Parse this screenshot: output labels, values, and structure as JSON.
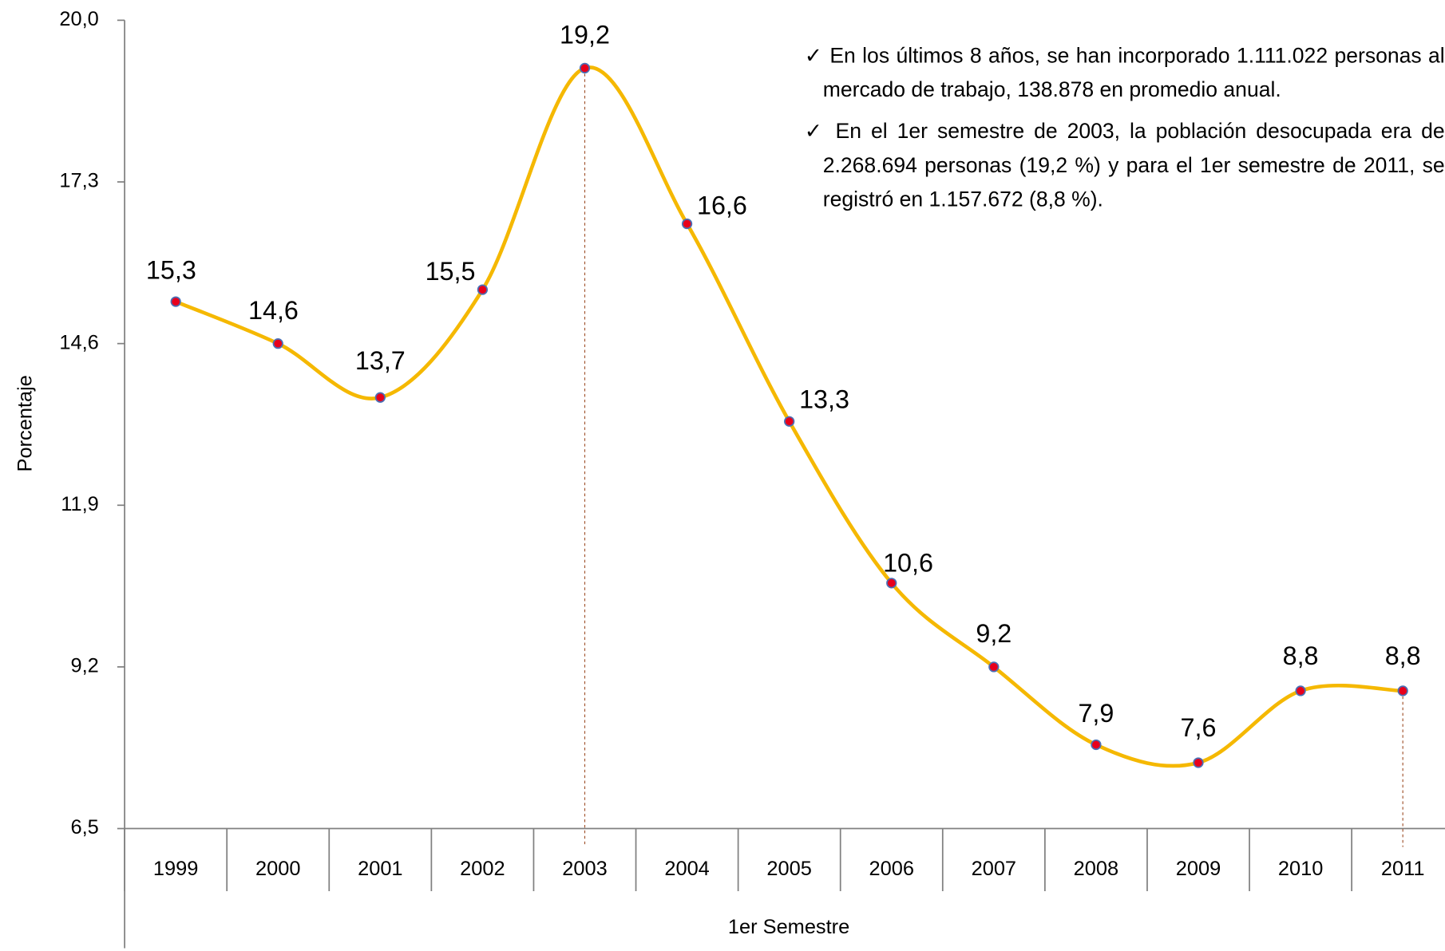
{
  "chart_data": {
    "type": "line",
    "x_label": "1er Semestre",
    "y_label": "Porcentaje",
    "categories": [
      "1999",
      "2000",
      "2001",
      "2002",
      "2003",
      "2004",
      "2005",
      "2006",
      "2007",
      "2008",
      "2009",
      "2010",
      "2011"
    ],
    "series": [
      {
        "color": "#f5b800",
        "values": [
          15.3,
          14.6,
          13.7,
          15.5,
          19.2,
          16.6,
          13.3,
          10.6,
          9.2,
          7.9,
          7.6,
          8.8,
          8.8
        ],
        "value_labels": [
          "15,3",
          "14,6",
          "13,7",
          "15,5",
          "19,2",
          "16,6",
          "13,3",
          "10,6",
          "9,2",
          "7,9",
          "7,6",
          "8,8",
          "8,8"
        ]
      }
    ],
    "ylim": [
      6.5,
      20.0
    ],
    "yticks": [
      {
        "value": 6.5,
        "label": "6,5"
      },
      {
        "value": 9.2,
        "label": "9,2"
      },
      {
        "value": 11.9,
        "label": "11,9"
      },
      {
        "value": 14.6,
        "label": "14,6"
      },
      {
        "value": 17.3,
        "label": "17,3"
      },
      {
        "value": 20.0,
        "label": "20,0"
      }
    ],
    "annotations": [
      "En los últimos 8 años, se han incorporado 1.111.022 personas al mercado de trabajo, 138.878  en promedio anual.",
      "En el  1er semestre de 2003, la población desocupada era de 2.268.694 personas (19,2 %) y para el 1er semestre de 2011, se registró en 1.157.672  (8,8 %)."
    ]
  }
}
